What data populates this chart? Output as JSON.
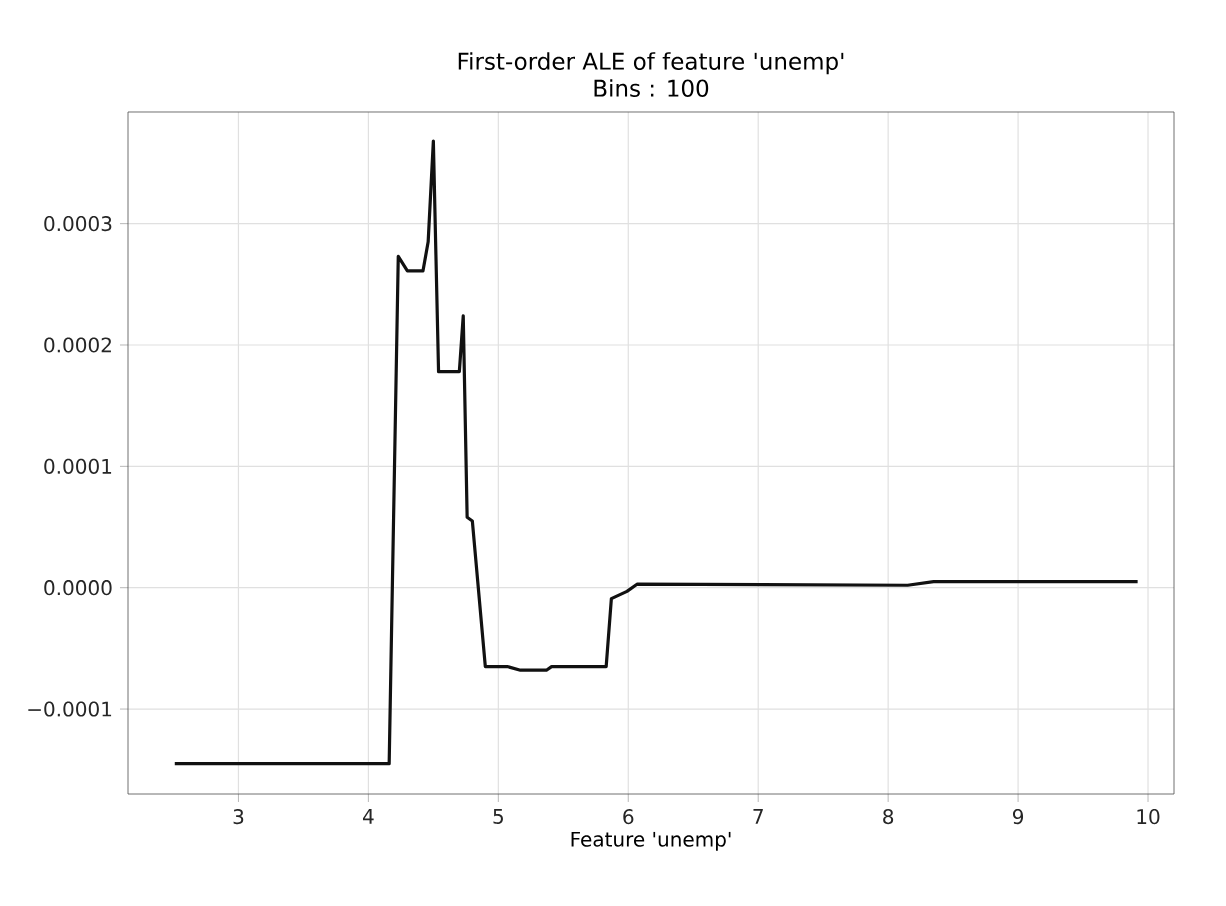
{
  "chart_data": {
    "type": "line",
    "title": "First-order ALE of feature 'unemp'",
    "subtitle": "Bins : 100",
    "xlabel": "Feature 'unemp'",
    "x": [
      2.51,
      4.16,
      4.23,
      4.3,
      4.42,
      4.46,
      4.5,
      4.54,
      4.7,
      4.73,
      4.76,
      4.8,
      4.9,
      5.07,
      5.17,
      5.37,
      5.41,
      5.83,
      5.87,
      5.99,
      6.07,
      8.15,
      8.35,
      9.92
    ],
    "series": [
      {
        "color": "#111111",
        "values": [
          -0.000145,
          -0.000145,
          0.000273,
          0.000261,
          0.000261,
          0.000285,
          0.000368,
          0.000178,
          0.000178,
          0.000224,
          5.8e-05,
          5.5e-05,
          -6.5e-05,
          -6.5e-05,
          -6.8e-05,
          -6.8e-05,
          -6.5e-05,
          -6.5e-05,
          -9e-06,
          -3e-06,
          3e-06,
          2e-06,
          5e-06,
          5e-06
        ]
      }
    ],
    "xlim": [
      2.15,
      10.2
    ],
    "ylim": [
      -0.00017,
      0.000392
    ],
    "xticks": [
      3,
      4,
      5,
      6,
      7,
      8,
      9,
      10
    ],
    "yticks": [
      {
        "value": -0.0001,
        "label": "−0.0001"
      },
      {
        "value": 0,
        "label": "0.0000"
      },
      {
        "value": 0.0001,
        "label": "0.0001"
      },
      {
        "value": 0.0002,
        "label": "0.0002"
      },
      {
        "value": 0.0003,
        "label": "0.0003"
      }
    ],
    "grid": true,
    "marker": "none",
    "line_style": "solid"
  }
}
